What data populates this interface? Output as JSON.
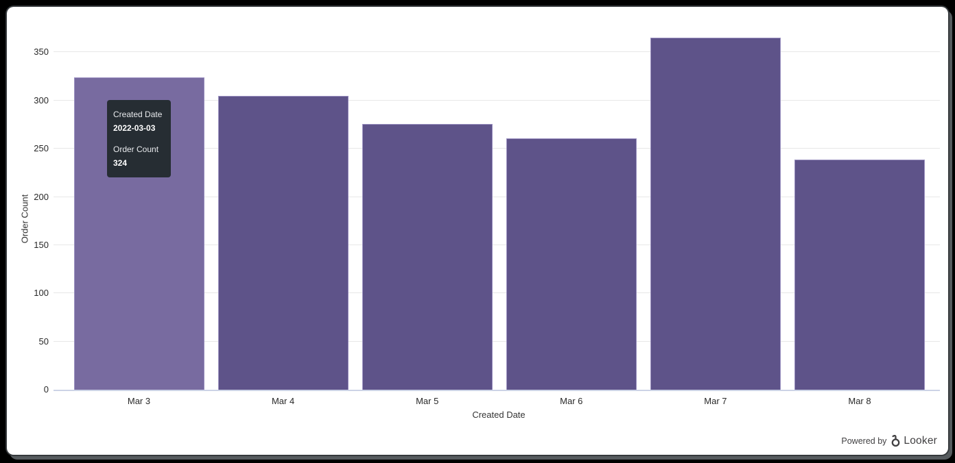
{
  "window": {
    "background_color": "#000000",
    "panel_color": "#ffffff"
  },
  "tooltip": {
    "field1_label": "Created Date",
    "field1_value": "2022-03-03",
    "field2_label": "Order Count",
    "field2_value": "324",
    "bg_color": "#262d33",
    "text_color": "#ffffff"
  },
  "branding": {
    "powered_by": "Powered by",
    "brand": "Looker",
    "text_color": "#414042"
  },
  "chart_data": {
    "type": "bar",
    "title": "",
    "xlabel": "Created Date",
    "ylabel": "Order Count",
    "categories": [
      "Mar 3",
      "Mar 4",
      "Mar 5",
      "Mar 6",
      "Mar 7",
      "Mar 8"
    ],
    "values": [
      324,
      305,
      276,
      261,
      365,
      239
    ],
    "yticks": [
      0,
      50,
      100,
      150,
      200,
      250,
      300,
      350
    ],
    "ylim": [
      0,
      371
    ],
    "grid": true,
    "legend": "none",
    "hover_index": 0,
    "bar_color": "#5E5389",
    "bar_hover_color": "#786BA0",
    "bar_border_color": "#9a90c0",
    "gridline_color": "#e7e7e7",
    "axis_line_color": "#ccd3e6",
    "tick_label_color": "#282828"
  }
}
